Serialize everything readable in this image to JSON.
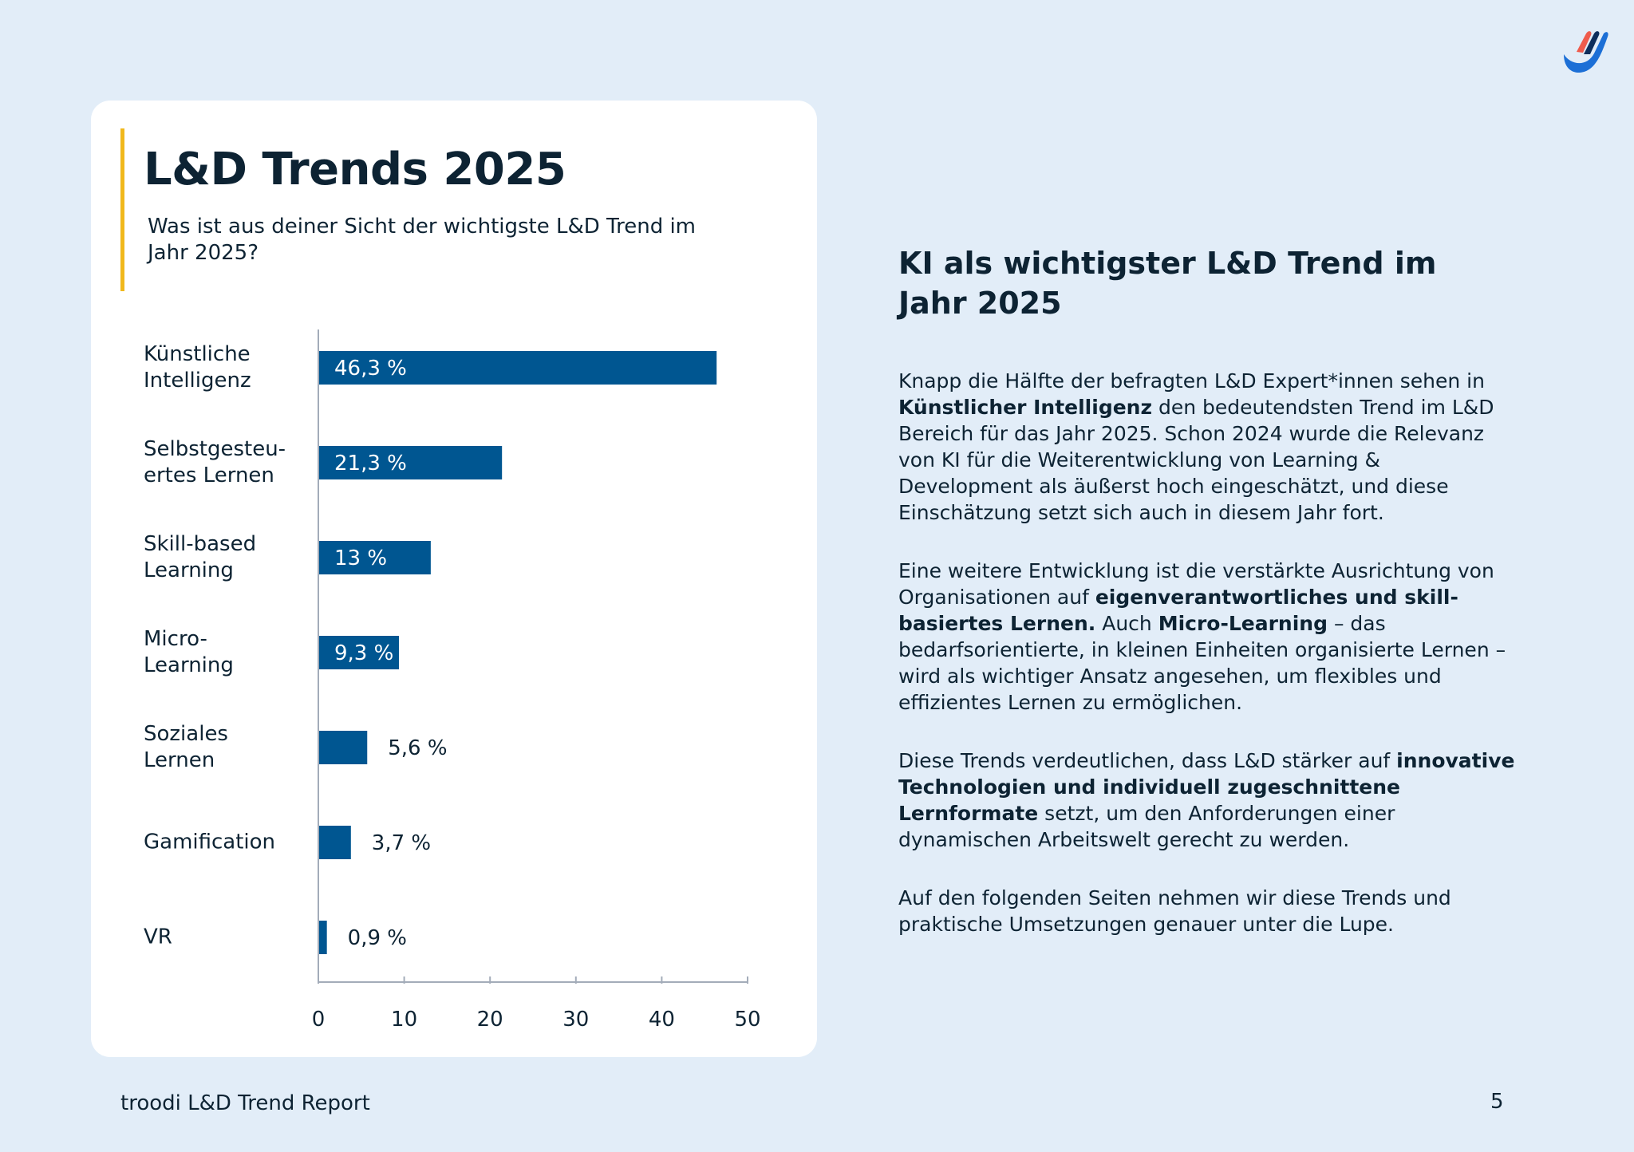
{
  "report_title": "troodi L&D Trend Report",
  "page_number": "5",
  "logo_icon": "troodi-logo-icon",
  "colors": {
    "background": "#e2edf8",
    "bar": "#005691",
    "accent": "#f0b81c",
    "text": "#0d2333"
  },
  "chart_title": "L&D Trends 2025",
  "chart_question": "Was ist aus deiner Sicht der wichtigste L&D Trend im Jahr 2025?",
  "chart_data": {
    "type": "bar",
    "orientation": "horizontal",
    "title": "L&D Trends 2025",
    "subtitle": "Was ist aus deiner Sicht der wichtigste L&D Trend im Jahr 2025?",
    "categories": [
      "Künstliche Intelligenz",
      "Selbstgesteu-ertes Lernen",
      "Skill-based Learning",
      "Micro-Learning",
      "Soziales Lernen",
      "Gamification",
      "VR"
    ],
    "category_labels": [
      "Künstliche\nIntelligenz",
      "Selbstgesteu-\nertes Lernen",
      "Skill-based\nLearning",
      "Micro-\nLearning",
      "Soziales\nLernen",
      "Gamification",
      "VR"
    ],
    "values": [
      46.3,
      21.3,
      13,
      9.3,
      5.6,
      3.7,
      0.9
    ],
    "value_labels": [
      "46,3 %",
      "21,3 %",
      "13 %",
      "9,3 %",
      "5,6 %",
      "3,7 %",
      "0,9 %"
    ],
    "xlim": [
      0,
      50
    ],
    "xticks": [
      0,
      10,
      20,
      30,
      40,
      50
    ],
    "xlabel": "",
    "ylabel": "",
    "grid": false,
    "legend": "none"
  },
  "text_panel": {
    "heading": "KI als wichtigster L&D Trend im Jahr 2025",
    "paragraphs": [
      [
        {
          "t": "Knapp die Hälfte der befragten L&D Expert*innen sehen in ",
          "b": false
        },
        {
          "t": "Künstlicher Intelligenz",
          "b": true
        },
        {
          "t": " den bedeutendsten Trend im L&D Bereich für das Jahr 2025. Schon 2024 wurde die Relevanz von KI für die Weiterentwicklung von Learning & Development als äußerst hoch eingeschätzt, und diese Einschätzung setzt sich auch in diesem Jahr fort.",
          "b": false
        }
      ],
      [
        {
          "t": "Eine weitere Entwicklung ist die verstärkte Ausrichtung von Organisationen auf ",
          "b": false
        },
        {
          "t": "eigenverantwortliches und skill-basiertes Lernen.",
          "b": true
        },
        {
          "t": " Auch ",
          "b": false
        },
        {
          "t": "Micro-Learning",
          "b": true
        },
        {
          "t": " – das bedarfsorientierte, in kleinen Einheiten organisierte Lernen – wird als wichtiger Ansatz angesehen, um flexibles und effizientes Lernen zu ermöglichen.",
          "b": false
        }
      ],
      [
        {
          "t": "Diese Trends verdeutlichen, dass L&D stärker auf ",
          "b": false
        },
        {
          "t": "innovative Technologien und individuell zugeschnittene Lernformate",
          "b": true
        },
        {
          "t": " setzt, um den Anforderungen einer dynamischen Arbeitswelt gerecht zu werden.",
          "b": false
        }
      ],
      [
        {
          "t": "Auf den folgenden Seiten nehmen wir diese Trends und praktische Umsetzungen genauer unter die Lupe.",
          "b": false
        }
      ]
    ]
  }
}
